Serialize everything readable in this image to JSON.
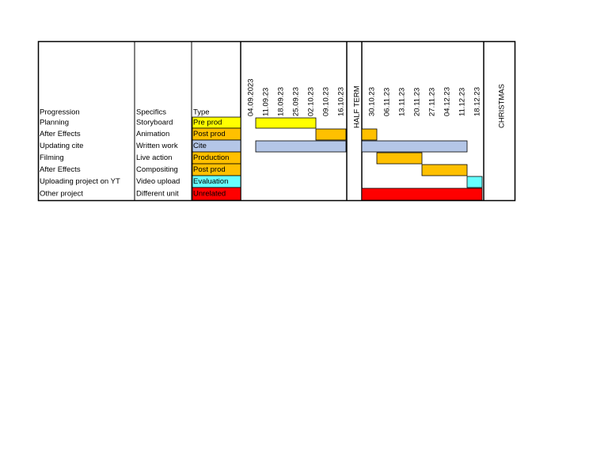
{
  "table": {
    "headers": {
      "progression": "Progression",
      "specifics": "Specifics",
      "type": "Type"
    },
    "dates_before": [
      "04.09.2023",
      "11.09.23",
      "18.09.23",
      "25.09.23",
      "02.10.23",
      "09.10.23",
      "16.10.23"
    ],
    "half_term": "HALF TERM",
    "dates_after": [
      "30.10.23",
      "06.11.23",
      "13.11.23",
      "20.11.23",
      "27.11.23",
      "04.12.23",
      "11.12.23",
      "18.12.23"
    ],
    "christmas": "CHRISTMAS",
    "rows": [
      {
        "progression": "Planning",
        "specifics": "Storyboard",
        "type": "Pre prod",
        "color": "#ffff00"
      },
      {
        "progression": "After Effects",
        "specifics": "Animation",
        "type": "Post prod",
        "color": "#ffc000"
      },
      {
        "progression": "Updating cite",
        "specifics": "Written work",
        "type": "Cite",
        "color": "#b4c6e7"
      },
      {
        "progression": "Filming",
        "specifics": "Live action",
        "type": "Production",
        "color": "#ffc000"
      },
      {
        "progression": "After Effects",
        "specifics": "Compositing",
        "type": "Post prod",
        "color": "#ffc000"
      },
      {
        "progression": "Uploading project on YT",
        "specifics": "Video upload",
        "type": "Evaluation",
        "color": "#66ffff"
      },
      {
        "progression": "Other project",
        "specifics": "Different unit",
        "type": "Unrelated",
        "color": "#ff0000"
      }
    ]
  }
}
